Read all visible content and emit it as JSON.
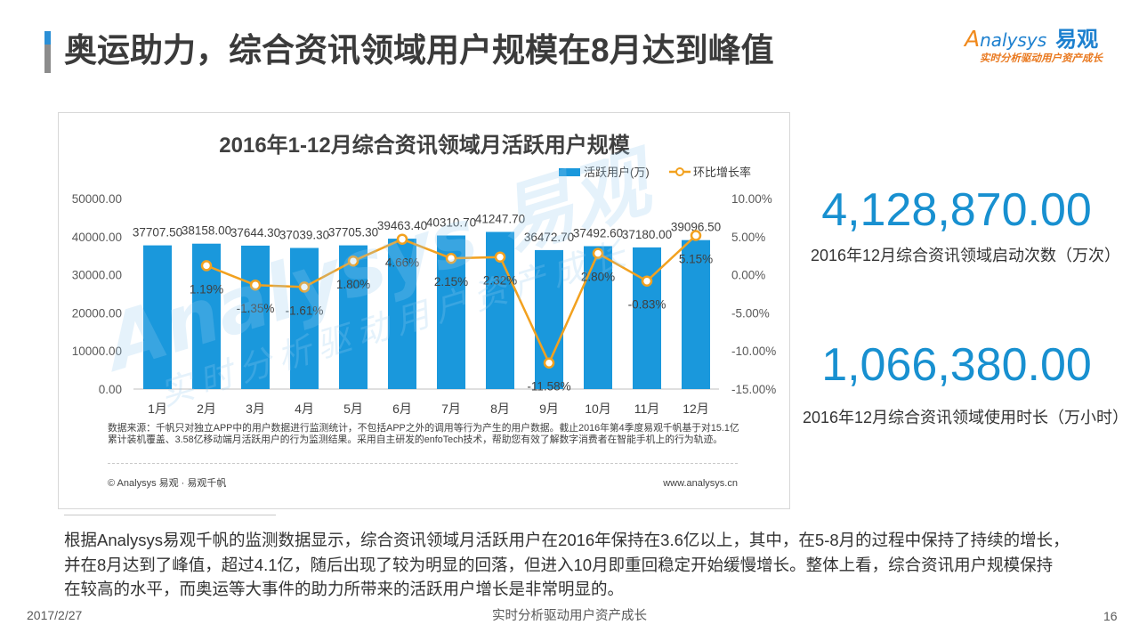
{
  "slide": {
    "title": "奥运助力，综合资讯领域用户规模在8月达到峰值",
    "footer_date": "2017/2/27",
    "footer_center": "实时分析驱动用户资产成长",
    "page_number": "16"
  },
  "logo": {
    "name": "Analysys",
    "cn": "易观",
    "tagline": "实时分析驱动用户资产成长"
  },
  "watermark": {
    "name": "Analysys 易观",
    "tagline": "实时分析驱动用户资产成长"
  },
  "colors": {
    "bar": "#1a98dc",
    "line": "#f2a11f",
    "highlight": "#1890d0"
  },
  "chart_data": {
    "type": "bar",
    "title": "2016年1-12月综合资讯领域月活跃用户规模",
    "categories": [
      "1月",
      "2月",
      "3月",
      "4月",
      "5月",
      "6月",
      "7月",
      "8月",
      "9月",
      "10月",
      "11月",
      "12月"
    ],
    "series": [
      {
        "name": "活跃用户(万)",
        "type": "bar",
        "axis": "left",
        "values": [
          37707.5,
          38158.0,
          37644.3,
          37039.3,
          37705.3,
          39463.4,
          40310.7,
          41247.7,
          36472.7,
          37492.6,
          37180.0,
          39096.5
        ],
        "data_labels": [
          "37707.50",
          "38158.00",
          "37644.30",
          "37039.30",
          "37705.30",
          "39463.40",
          "40310.70",
          "41247.70",
          "36472.70",
          "37492.60",
          "37180.00",
          "39096.50"
        ]
      },
      {
        "name": "环比增长率",
        "type": "line",
        "axis": "right",
        "values": [
          null,
          1.19,
          -1.35,
          -1.61,
          1.8,
          4.66,
          2.15,
          2.32,
          -11.58,
          2.8,
          -0.83,
          5.15
        ],
        "data_labels": [
          null,
          "1.19%",
          "-1.35%",
          "-1.61%",
          "1.80%",
          "4.66%",
          "2.15%",
          "2.32%",
          "-11.58%",
          "2.80%",
          "-0.83%",
          "5.15%"
        ]
      }
    ],
    "ylim": [
      0,
      50000
    ],
    "y_ticks": [
      "0.00",
      "10000.00",
      "20000.00",
      "30000.00",
      "40000.00",
      "50000.00"
    ],
    "y2lim": [
      -15,
      10
    ],
    "y2_ticks": [
      "-15.00%",
      "-10.00%",
      "-5.00%",
      "0.00%",
      "5.00%",
      "10.00%"
    ],
    "grid": false,
    "legend": "top-right",
    "source_lines": [
      "数据来源：千帆只对独立APP中的用户数据进行监测统计，不包括APP之外的调用等行为产生的用户数据。截止2016年第4季度易观千帆基于对15.1亿",
      "累计装机覆盖、3.58亿移动端月活跃用户的行为监测结果。采用自主研发的enfoTech技术，帮助您有效了解数字消费者在智能手机上的行为轨迹。"
    ],
    "copyright": "© Analysys 易观 · 易观千帆",
    "website": "www.analysys.cn"
  },
  "highlights": [
    {
      "value": "4,128,870.00",
      "label": "2016年12月综合资讯领域启动次数（万次）"
    },
    {
      "value": "1,066,380.00",
      "label": "2016年12月综合资讯领域使用时长（万小时）"
    }
  ],
  "summary_lines": [
    "根据Analysys易观千帆的监测数据显示，综合资讯领域月活跃用户在2016年保持在3.6亿以上，其中，在5-8月的过程中保持了持续的增长，",
    "并在8月达到了峰值，超过4.1亿，随后出现了较为明显的回落，但进入10月即重回稳定开始缓慢增长。整体上看，综合资讯用户规模保持",
    "在较高的水平，而奥运等大事件的助力所带来的活跃用户增长是非常明显的。"
  ]
}
